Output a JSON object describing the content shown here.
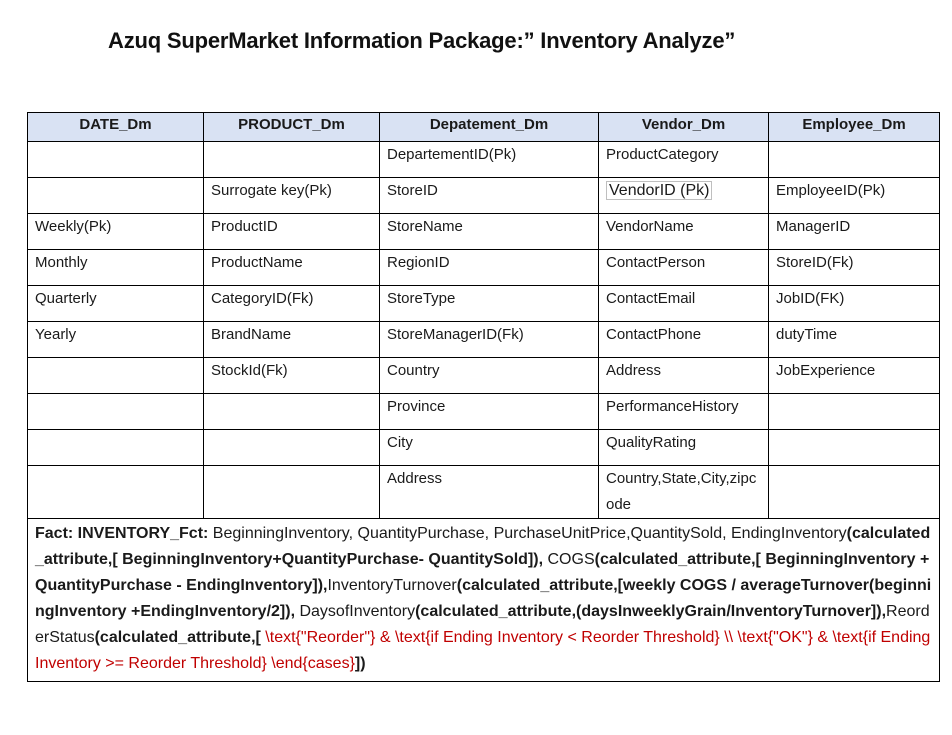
{
  "title": "Azuq SuperMarket Information Package:” Inventory Analyze”",
  "headers": [
    "DATE_Dm",
    "PRODUCT_Dm",
    "Depatement_Dm",
    "Vendor_Dm",
    "Employee_Dm"
  ],
  "rows": [
    [
      "",
      "",
      "DepartementID(Pk)",
      "ProductCategory",
      ""
    ],
    [
      "",
      "Surrogate key(Pk)",
      "StoreID",
      "VendorID (Pk)",
      "EmployeeID(Pk)"
    ],
    [
      "Weekly(Pk)",
      "ProductID",
      "StoreName",
      "VendorName",
      "ManagerID"
    ],
    [
      "Monthly",
      "ProductName",
      "RegionID",
      "ContactPerson",
      "StoreID(Fk)"
    ],
    [
      "Quarterly",
      "CategoryID(Fk)",
      "StoreType",
      "ContactEmail",
      "JobID(FK)"
    ],
    [
      "Yearly",
      "BrandName",
      "StoreManagerID(Fk)",
      "ContactPhone",
      "dutyTime"
    ],
    [
      "",
      "StockId(Fk)",
      "Country",
      "Address",
      "JobExperience"
    ],
    [
      "",
      "",
      "Province",
      "PerformanceHistory",
      ""
    ],
    [
      "",
      "",
      "City",
      "QualityRating",
      ""
    ],
    [
      "",
      "",
      "Address",
      "Country,State,City,zipcode",
      ""
    ]
  ],
  "fact": {
    "label": "Fact: INVENTORY_Fct:",
    "p1": " BeginningInventory, QuantityPurchase, PurchaseUnitPrice,QuantitySold, EndingInventory",
    "p2": "(calculated_attribute,[ BeginningInventory+QuantityPurchase- QuantitySold]),",
    "p3": " COGS",
    "p4": "(calculated_attribute,[ BeginningInventory + QuantityPurchase - EndingInventory]),",
    "p5": "InventoryTurnover",
    "p6": "(calculated_attribute,[weekly COGS / averageTurnover(beginningInventory +EndingInventory/2]),",
    "p7": " DaysofInventory",
    "p8": "(calculated_attribute,(daysInweeklyGrain/InventoryTurnover]),",
    "p9": "ReorderStatus",
    "p10": "(calculated_attribute,[",
    "p11": " \\text{\"Reorder\"} & \\text{if Ending Inventory < Reorder Threshold} \\\\ \\text{\"OK\"} & \\text{if Ending Inventory >= Reorder Threshold} \\end{cases}",
    "p12": "])"
  },
  "colors": {
    "header_bg": "#d9e2f3",
    "red_text": "#c00000"
  }
}
